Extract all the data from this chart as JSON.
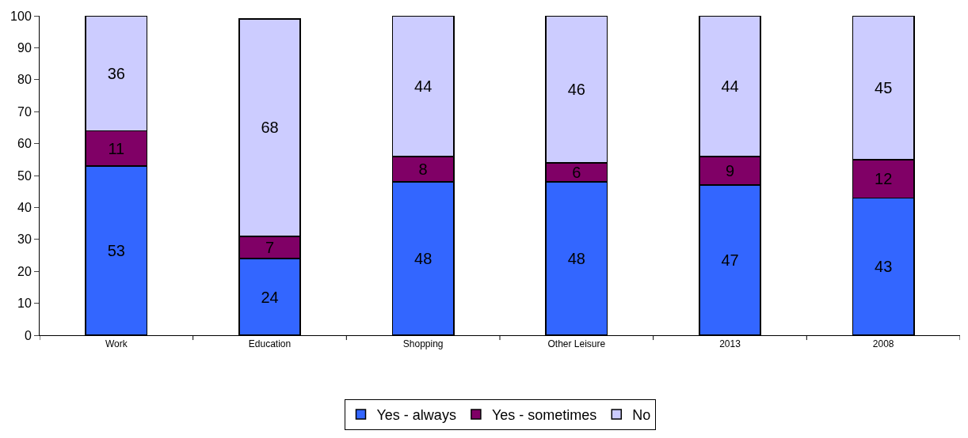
{
  "chart_data": {
    "type": "bar",
    "stacked": true,
    "categories": [
      "Work",
      "Education",
      "Shopping",
      "Other Leisure",
      "2013",
      "2008"
    ],
    "series": [
      {
        "name": "Yes - always",
        "color": "#3366ff",
        "values": [
          53,
          24,
          48,
          48,
          47,
          43
        ]
      },
      {
        "name": "Yes - sometimes",
        "color": "#800066",
        "values": [
          11,
          7,
          8,
          6,
          9,
          12
        ]
      },
      {
        "name": "No",
        "color": "#ccccff",
        "values": [
          36,
          68,
          44,
          46,
          44,
          45
        ]
      }
    ],
    "ylim": [
      0,
      100
    ],
    "yticks": [
      0,
      10,
      20,
      30,
      40,
      50,
      60,
      70,
      80,
      90,
      100
    ],
    "data_labels": true,
    "legend": "bottom",
    "grid": false
  }
}
